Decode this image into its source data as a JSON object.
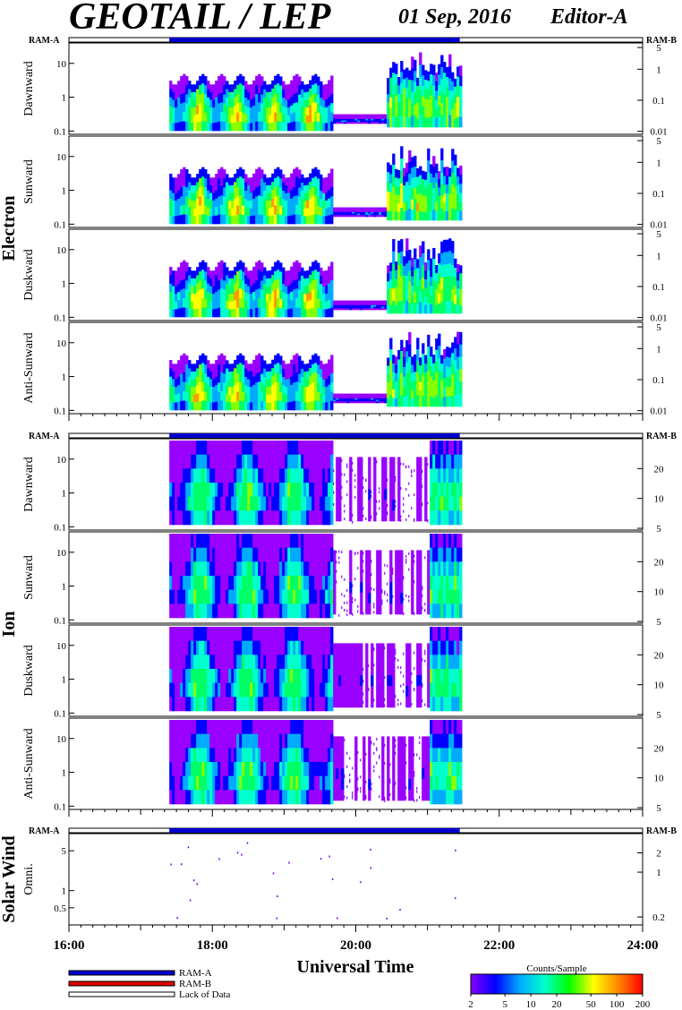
{
  "header": {
    "title": "GEOTAIL / LEP",
    "date": "01 Sep, 2016",
    "editor": "Editor-A"
  },
  "chart_data": {
    "type": "heatmap",
    "xlabel": "Universal Time",
    "x_ticks": [
      "16:00",
      "18:00",
      "20:00",
      "22:00",
      "24:00"
    ],
    "x_range_hours": [
      16,
      24
    ],
    "data_coverage_hours": [
      17.4,
      21.45
    ],
    "ram_left_label": "RAM-A",
    "ram_right_label": "RAM-B",
    "groups": [
      {
        "name": "Electron",
        "left_ticks": [
          "10",
          "1",
          "0.1"
        ],
        "left_tick_values": [
          10,
          1,
          0.1
        ],
        "left_range": [
          0.08,
          40
        ],
        "right_ticks": [
          "5",
          "1",
          "0.1",
          "0.01"
        ],
        "right_tick_values": [
          5,
          1,
          0.1,
          0.01
        ],
        "right_range": [
          0.008,
          7
        ],
        "panels": [
          "Dawnward",
          "Sunward",
          "Duskward",
          "Anti-Sunward"
        ]
      },
      {
        "name": "Ion",
        "left_ticks": [
          "10",
          "1",
          "0.1"
        ],
        "left_tick_values": [
          10,
          1,
          0.1
        ],
        "left_range": [
          0.08,
          40
        ],
        "right_ticks": [
          "20",
          "10",
          "5"
        ],
        "right_tick_values": [
          20,
          10,
          5
        ],
        "right_range": [
          4.8,
          40
        ],
        "panels": [
          "Dawnward",
          "Sunward",
          "Duskward",
          "Anti-Sunward"
        ]
      },
      {
        "name": "Solar Wind",
        "left_ticks": [
          "5",
          "1",
          "0.5"
        ],
        "left_tick_values": [
          5,
          1,
          0.5
        ],
        "left_range": [
          0.25,
          10
        ],
        "right_ticks": [
          "2",
          "1",
          "0.2"
        ],
        "right_tick_values": [
          2,
          1,
          0.2
        ],
        "right_range": [
          0.15,
          4
        ],
        "panels": [
          "Omni."
        ]
      }
    ],
    "legend": {
      "items": [
        "RAM-A",
        "RAM-B",
        "Lack of Data"
      ],
      "colors": [
        "#0000cc",
        "#dd0000",
        "#ffffff"
      ]
    },
    "colorbar": {
      "label": "Counts/Sample",
      "ticks": [
        "2",
        "5",
        "10",
        "20",
        "50",
        "100",
        "200"
      ],
      "tick_values": [
        2,
        5,
        10,
        20,
        50,
        100,
        200
      ],
      "range": [
        2,
        200
      ],
      "colors": [
        "#8800ff",
        "#0000ff",
        "#00aaff",
        "#00ffcc",
        "#00ff00",
        "#ffff00",
        "#ff8800",
        "#ff0000"
      ]
    }
  }
}
